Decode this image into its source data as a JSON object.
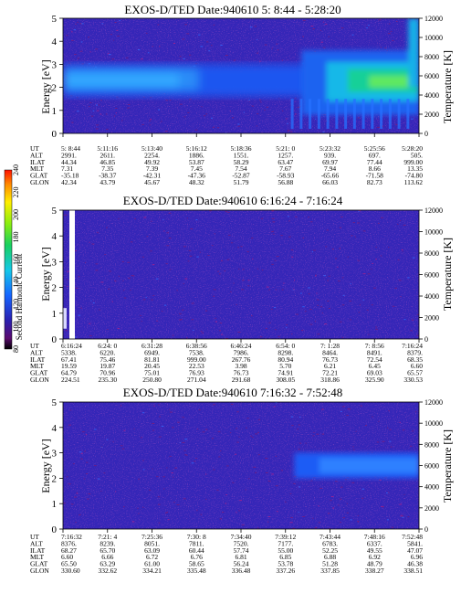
{
  "colorbar": {
    "label": "Second Harmonic Current",
    "ticks": [
      "80",
      "100",
      "120",
      "140",
      "160",
      "180",
      "200",
      "220",
      "240"
    ]
  },
  "chart_data": [
    {
      "type": "heatmap",
      "title": "EXOS-D/TED   Date:940610  5: 8:44 - 5:28:20",
      "ylabel": "Energy [eV]",
      "y2label": "Temperature [K]",
      "ylim": [
        0,
        5
      ],
      "y2lim": [
        0,
        12000
      ],
      "yticks": [
        "0",
        "1",
        "2",
        "3",
        "4",
        "5"
      ],
      "y2ticks": [
        "0",
        "2000",
        "4000",
        "6000",
        "8000",
        "10000",
        "12000"
      ],
      "row_labels": [
        "UT",
        "ALT",
        "ILAT",
        "MLT",
        "GLAT",
        "GLON"
      ],
      "columns": [
        [
          "5: 8:44",
          "2991.",
          "44.34",
          "7.31",
          "-35.18",
          "42.34"
        ],
        [
          "5:11:16",
          "2611.",
          "46.85",
          "7.35",
          "-38.37",
          "43.79"
        ],
        [
          "5:13:40",
          "2254.",
          "49.92",
          "7.39",
          "-42.31",
          "45.67"
        ],
        [
          "5:16:12",
          "1886.",
          "53.87",
          "7.45",
          "-47.36",
          "48.32"
        ],
        [
          "5:18:36",
          "1551.",
          "58.29",
          "7.54",
          "-52.87",
          "51.79"
        ],
        [
          "5:21: 0",
          "1257.",
          "63.47",
          "7.67",
          "-58.93",
          "56.88"
        ],
        [
          "5:23:32",
          "939.",
          "69.97",
          "7.94",
          "-65.66",
          "66.03"
        ],
        [
          "5:25:56",
          "697.",
          "77.44",
          "8.66",
          "-71.58",
          "82.73"
        ],
        [
          "5:28:20",
          "505.",
          "999.00",
          "13.35",
          "-74.80",
          "113.62"
        ]
      ]
    },
    {
      "type": "heatmap",
      "title": "EXOS-D/TED   Date:940610  6:16:24 - 7:16:24",
      "ylabel": "Energy [eV]",
      "y2label": "Temperature [K]",
      "ylim": [
        0,
        5
      ],
      "y2lim": [
        0,
        12000
      ],
      "yticks": [
        "0",
        "1",
        "2",
        "3",
        "4",
        "5"
      ],
      "y2ticks": [
        "0",
        "2000",
        "4000",
        "6000",
        "8000",
        "10000",
        "12000"
      ],
      "row_labels": [
        "UT",
        "ALT",
        "ILAT",
        "MLT",
        "GLAT",
        "GLON"
      ],
      "columns": [
        [
          "6:16:24",
          "5338.",
          "67.41",
          "19.59",
          "64.79",
          "224.51"
        ],
        [
          "6:24: 0",
          "6220.",
          "75.46",
          "19.87",
          "70.96",
          "235.30"
        ],
        [
          "6:31:28",
          "6949.",
          "81.81",
          "20.45",
          "75.01",
          "250.80"
        ],
        [
          "6:38:56",
          "7538.",
          "999.00",
          "22.53",
          "76.93",
          "271.04"
        ],
        [
          "6:46:24",
          "7986.",
          "267.76",
          "3.98",
          "76.73",
          "291.68"
        ],
        [
          "6:54: 0",
          "8298.",
          "80.94",
          "5.70",
          "74.91",
          "308.05"
        ],
        [
          "7: 1:28",
          "8464.",
          "76.73",
          "6.21",
          "72.21",
          "318.86"
        ],
        [
          "7: 8:56",
          "8491.",
          "72.54",
          "6.45",
          "69.03",
          "325.90"
        ],
        [
          "7:16:24",
          "8379.",
          "68.35",
          "6.60",
          "65.57",
          "330.53"
        ]
      ]
    },
    {
      "type": "heatmap",
      "title": "EXOS-D/TED   Date:940610  7:16:32 - 7:52:48",
      "ylabel": "Energy [eV]",
      "y2label": "Temperature [K]",
      "ylim": [
        0,
        5
      ],
      "y2lim": [
        0,
        12000
      ],
      "yticks": [
        "0",
        "1",
        "2",
        "3",
        "4",
        "5"
      ],
      "y2ticks": [
        "0",
        "2000",
        "4000",
        "6000",
        "8000",
        "10000",
        "12000"
      ],
      "row_labels": [
        "UT",
        "ALT",
        "ILAT",
        "MLT",
        "GLAT",
        "GLON"
      ],
      "columns": [
        [
          "7:16:32",
          "8376.",
          "68.27",
          "6.60",
          "65.50",
          "330.60"
        ],
        [
          "7:21: 4",
          "8239.",
          "65.70",
          "6.66",
          "63.29",
          "332.62"
        ],
        [
          "7:25:36",
          "8051.",
          "63.09",
          "6.72",
          "61.00",
          "334.21"
        ],
        [
          "7:30: 8",
          "7811.",
          "60.44",
          "6.76",
          "58.65",
          "335.48"
        ],
        [
          "7:34:40",
          "7520.",
          "57.74",
          "6.81",
          "56.24",
          "336.48"
        ],
        [
          "7:39:12",
          "7177.",
          "55.00",
          "6.85",
          "53.78",
          "337.26"
        ],
        [
          "7:43:44",
          "6783.",
          "52.25",
          "6.88",
          "51.28",
          "337.85"
        ],
        [
          "7:48:16",
          "6337.",
          "49.55",
          "6.92",
          "48.79",
          "338.27"
        ],
        [
          "7:52:48",
          "5841.",
          "47.07",
          "6.96",
          "46.38",
          "338.51"
        ]
      ]
    }
  ]
}
